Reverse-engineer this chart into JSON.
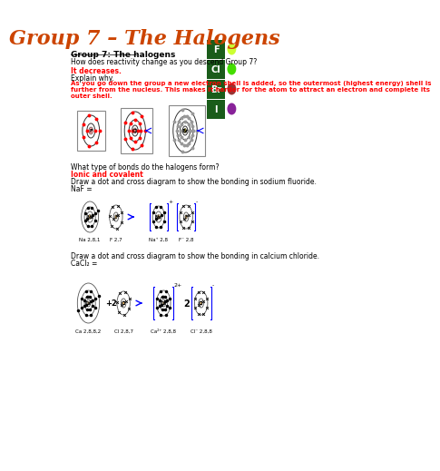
{
  "title": "Group 7 – The Halogens",
  "title_color": "#cc4400",
  "title_fontsize": 16,
  "bg_color": "#ffffff",
  "elements": [
    {
      "symbol": "F",
      "circle_color": "#ccff33"
    },
    {
      "symbol": "Cl",
      "circle_color": "#44dd00"
    },
    {
      "symbol": "Br",
      "circle_color": "#993333"
    },
    {
      "symbol": "I",
      "circle_color": "#882299"
    }
  ],
  "elem_bg": "#1a5c1a",
  "section_bold_title": "Group 7: The halogens",
  "q1": "How does reactivity change as you descend Group 7?",
  "a1": "It decreases.",
  "q2": "Explain why.",
  "a2": "As you go down the group a new electron shell is added, so the outermost (highest energy) shell is\nfurther from the nucleus. This makes it harder for the atom to attract an electron and complete its\nouter shell.",
  "q3": "What type of bonds do the halogens form?",
  "a3": "Ionic and covalent",
  "q4": "Draw a dot and cross diagram to show the bonding in sodium fluoride.",
  "naf_label": "NaF =",
  "naf_labels_below": [
    "Na 2,8,1",
    "F 2,7",
    "Na⁺ 2,8",
    "F⁻ 2,8"
  ],
  "q5": "Draw a dot and cross diagram to show the bonding in calcium chloride.",
  "cacl2_label": "CaCl₂ =",
  "cacl2_labels_below": [
    "Ca 2,8,8,2",
    "Cl 2,8,7",
    "Ca²⁺ 2,8,8",
    "Cl⁻ 2,8,8"
  ]
}
